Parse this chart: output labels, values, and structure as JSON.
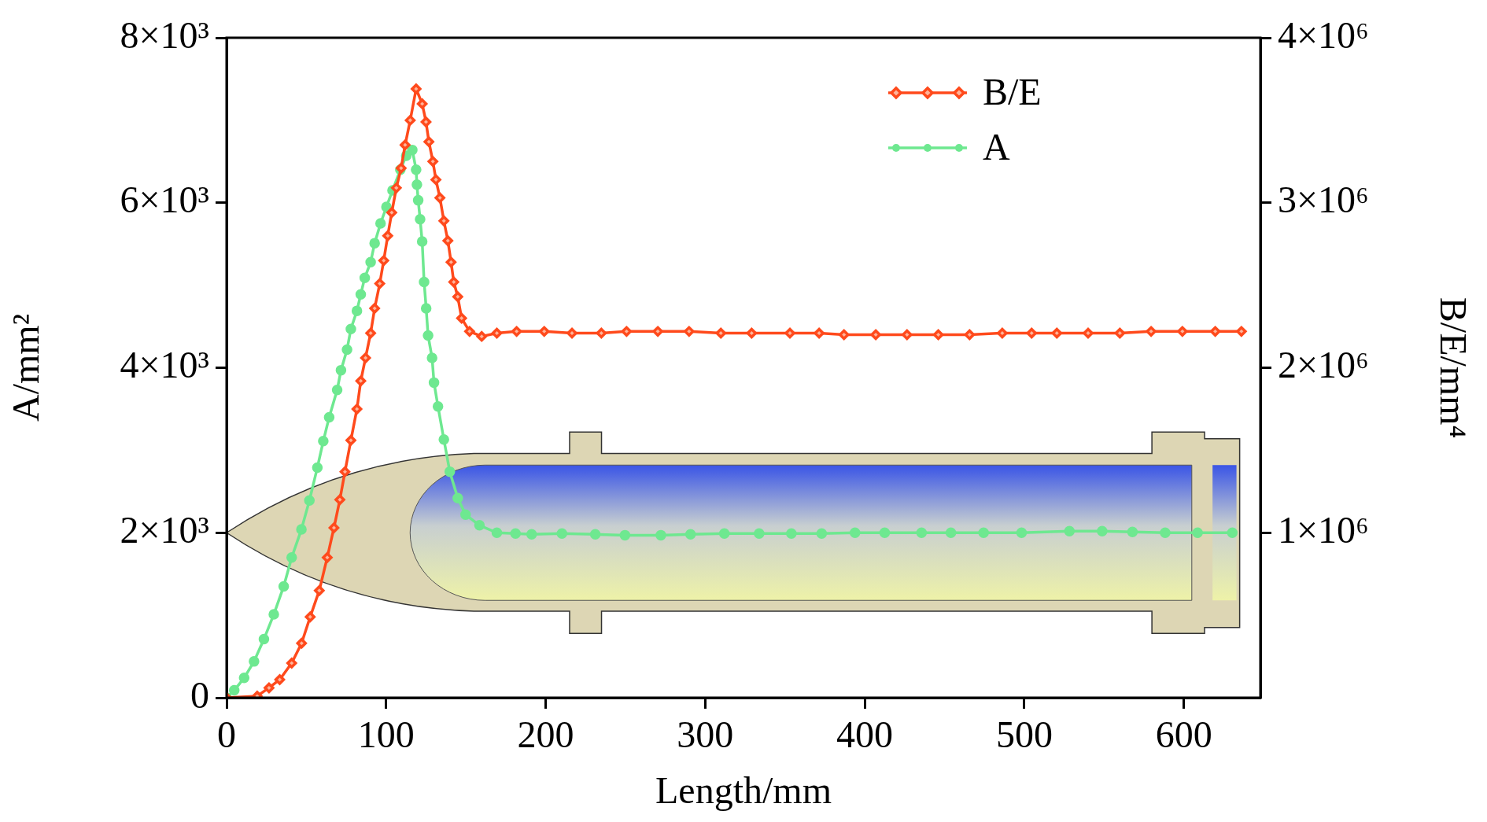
{
  "chart_data": {
    "type": "line",
    "xlabel": "Length/mm",
    "ylabel": "A/mm²",
    "y2label": "B/E/mm⁴",
    "xlim": [
      0,
      648
    ],
    "xticks": [
      0,
      100,
      200,
      300,
      400,
      500,
      600
    ],
    "ylim": [
      0,
      8000
    ],
    "yticks": [
      {
        "value": 0,
        "label": "0"
      },
      {
        "value": 2000,
        "label": "2×10³"
      },
      {
        "value": 4000,
        "label": "4×10³"
      },
      {
        "value": 6000,
        "label": "6×10³"
      },
      {
        "value": 8000,
        "label": "8×10³"
      }
    ],
    "y2lim": [
      0,
      4000000
    ],
    "y2ticks": [
      {
        "value": 1000000,
        "label": "1×10⁶"
      },
      {
        "value": 2000000,
        "label": "2×10⁶"
      },
      {
        "value": 3000000,
        "label": "3×10⁶"
      },
      {
        "value": 4000000,
        "label": "4×10⁶"
      }
    ],
    "grid": false,
    "legend": "top right",
    "line_style": "solid",
    "series": [
      {
        "name": "B/E",
        "color": "#ff4a1c",
        "marker": "diamond",
        "axis": "y2",
        "x": [
          0,
          19.2,
          26.6,
          33.3,
          40.8,
          47,
          52.4,
          58.1,
          63.1,
          67.3,
          71,
          74.2,
          77.9,
          81.7,
          84.1,
          87.1,
          90.3,
          92.8,
          96,
          98.5,
          101,
          103.5,
          106.4,
          109.4,
          111.9,
          115.1,
          118.8,
          122.6,
          125,
          126.8,
          129.3,
          131.2,
          133.7,
          136.2,
          138.7,
          140.7,
          142.4,
          144.9,
          147.3,
          152.3,
          159.9,
          169.4,
          181.8,
          199.1,
          216.5,
          234.9,
          250.7,
          270.3,
          289.9,
          309.8,
          329.1,
          353.1,
          371.4,
          387,
          406.9,
          426.5,
          446.1,
          465.7,
          486.2,
          504.6,
          520.4,
          540,
          559.9,
          579.5,
          599.1,
          619.7,
          636.1
        ],
        "values": [
          0,
          10000,
          60000,
          110000,
          210000,
          330000,
          490000,
          650000,
          850000,
          1030000,
          1200000,
          1370000,
          1560000,
          1750000,
          1920000,
          2060000,
          2210000,
          2360000,
          2510000,
          2650000,
          2800000,
          2940000,
          3090000,
          3210000,
          3350000,
          3500000,
          3690000,
          3600000,
          3490000,
          3370000,
          3250000,
          3140000,
          3030000,
          2890000,
          2770000,
          2640000,
          2520000,
          2430000,
          2300000,
          2220000,
          2190000,
          2210000,
          2220000,
          2220000,
          2210000,
          2210000,
          2220000,
          2220000,
          2220000,
          2210000,
          2210000,
          2210000,
          2210000,
          2200000,
          2200000,
          2200000,
          2200000,
          2200000,
          2210000,
          2210000,
          2210000,
          2210000,
          2210000,
          2220000,
          2220000,
          2220000,
          2220000
        ]
      },
      {
        "name": "A",
        "color": "#6ee890",
        "marker": "circle",
        "x": [
          0,
          4.8,
          11,
          17.2,
          23.4,
          29.6,
          35.8,
          40.8,
          46.9,
          51.9,
          56.9,
          60.6,
          64.3,
          69.3,
          71.7,
          75.5,
          77.9,
          81.7,
          84.1,
          86.6,
          90.3,
          92.8,
          96.5,
          100.2,
          104,
          108.9,
          112.6,
          116.4,
          118.8,
          119.3,
          120.1,
          121.3,
          122.6,
          123.8,
          125.1,
          126.3,
          128.8,
          130,
          132.5,
          136.2,
          139.9,
          144.9,
          149.8,
          158.5,
          169.4,
          181.1,
          191.2,
          210.2,
          231.1,
          249.7,
          272.2,
          290.8,
          312,
          333.8,
          354,
          373,
          393.9,
          412.5,
          435.6,
          454,
          474.5,
          498.3,
          528.3,
          548.8,
          567.8,
          588.3,
          608.6,
          630.4
        ],
        "values": [
          0,
          90,
          240,
          440,
          710,
          1010,
          1350,
          1700,
          2040,
          2390,
          2790,
          3110,
          3400,
          3730,
          3970,
          4220,
          4470,
          4690,
          4890,
          5090,
          5280,
          5510,
          5750,
          5950,
          6150,
          6400,
          6570,
          6640,
          6400,
          6220,
          6030,
          5800,
          5530,
          5040,
          4720,
          4390,
          4120,
          3820,
          3530,
          3130,
          2740,
          2420,
          2220,
          2090,
          2000,
          1990,
          1980,
          1990,
          1980,
          1970,
          1970,
          1980,
          1990,
          1990,
          1990,
          1990,
          2000,
          2000,
          2000,
          2000,
          2000,
          2000,
          2020,
          2020,
          2010,
          2000,
          2000,
          2000
        ]
      }
    ]
  }
}
